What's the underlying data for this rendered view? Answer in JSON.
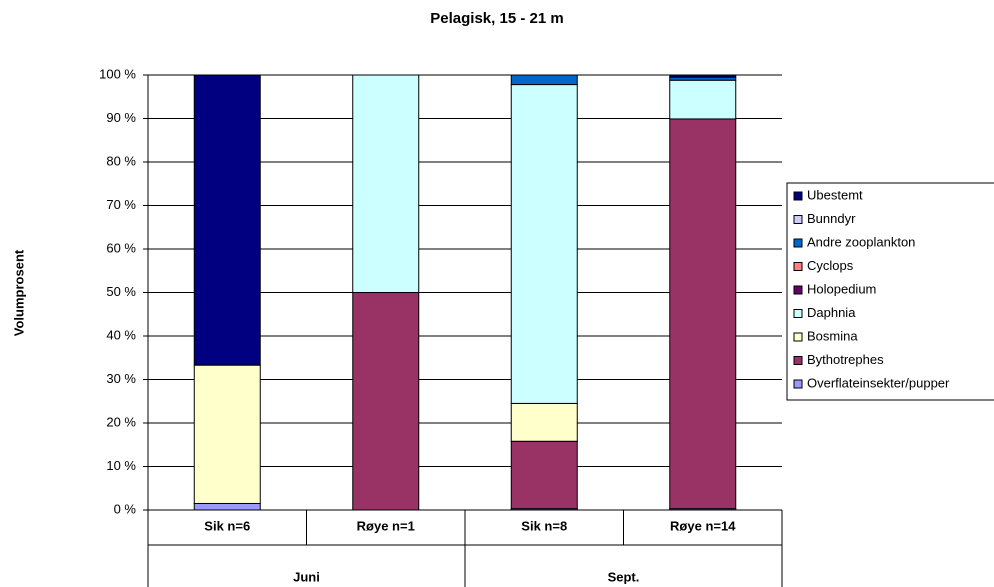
{
  "chart_data": {
    "type": "stacked-bar",
    "title": "Pelagisk, 15 - 21 m",
    "y_label": "Volumprosent",
    "categories": [
      "Sik n=6",
      "Røye n=1",
      "Sik n=8",
      "Røye n=14"
    ],
    "groups": [
      "Juni",
      "Sept."
    ],
    "ylim": [
      0,
      100
    ],
    "yticks": [
      {
        "value": 0,
        "label": "0 %"
      },
      {
        "value": 10,
        "label": "10 %"
      },
      {
        "value": 20,
        "label": "20 %"
      },
      {
        "value": 30,
        "label": "30 %"
      },
      {
        "value": 40,
        "label": "40 %"
      },
      {
        "value": 50,
        "label": "50 %"
      },
      {
        "value": 60,
        "label": "60 %"
      },
      {
        "value": 70,
        "label": "70 %"
      },
      {
        "value": 80,
        "label": "80 %"
      },
      {
        "value": 90,
        "label": "90 %"
      },
      {
        "value": 100,
        "label": "100 %"
      }
    ],
    "grid": true,
    "legend": "right",
    "series": [
      {
        "name": "Overflateinsekter/pupper",
        "color": "#9999ff",
        "values": [
          1.5,
          0,
          0.3,
          0.3
        ]
      },
      {
        "name": "Bythotrephes",
        "color": "#993366",
        "values": [
          0,
          50,
          15.5,
          89.6
        ]
      },
      {
        "name": "Bosmina",
        "color": "#ffffcc",
        "values": [
          31.8,
          0,
          8.7,
          0
        ]
      },
      {
        "name": "Daphnia",
        "color": "#ccffff",
        "values": [
          0,
          50,
          73.3,
          8.9
        ]
      },
      {
        "name": "Holopedium",
        "color": "#660066",
        "values": [
          0,
          0,
          0,
          0
        ]
      },
      {
        "name": "Cyclops",
        "color": "#ff8080",
        "values": [
          0,
          0,
          0,
          0
        ]
      },
      {
        "name": "Andre zooplankton",
        "color": "#0066cc",
        "values": [
          0,
          0,
          2.2,
          0.7
        ]
      },
      {
        "name": "Bunndyr",
        "color": "#ccccff",
        "values": [
          0,
          0,
          0,
          0
        ]
      },
      {
        "name": "Ubestemt",
        "color": "#000080",
        "values": [
          66.7,
          0,
          0,
          0.5
        ]
      }
    ]
  }
}
